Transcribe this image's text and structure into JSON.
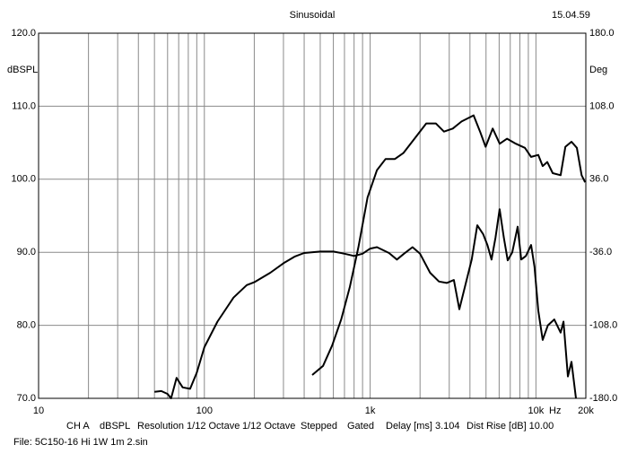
{
  "chart_data": {
    "type": "line",
    "title": "Sinusoidal",
    "timestamp": "15.04.59",
    "ylabel": "dBSPL",
    "y2label": "Deg",
    "xunit": "Hz",
    "xscale": "log",
    "grid": true,
    "xlim": [
      10,
      20000
    ],
    "xticks": [
      10,
      100,
      {
        "value": 1000,
        "label": "1k"
      },
      {
        "value": 10000,
        "label": "10k"
      },
      {
        "value": 20000,
        "label": "20k"
      }
    ],
    "xgrid": [
      20,
      30,
      40,
      50,
      60,
      70,
      80,
      90,
      200,
      300,
      400,
      500,
      600,
      700,
      800,
      900,
      2000,
      3000,
      4000,
      5000,
      6000,
      7000,
      8000,
      9000
    ],
    "ylim": [
      70,
      120
    ],
    "yticks": [
      {
        "value": 70,
        "label": "70.0"
      },
      {
        "value": 80,
        "label": "80.0"
      },
      {
        "value": 90,
        "label": "90.0"
      },
      {
        "value": 100,
        "label": "100.0"
      },
      {
        "value": 110,
        "label": "110.0"
      },
      {
        "value": 120,
        "label": "120.0"
      }
    ],
    "y2lim": [
      -180,
      180
    ],
    "y2ticks": [
      {
        "value": -180,
        "label": "-180.0"
      },
      {
        "value": -108,
        "label": "-108.0"
      },
      {
        "value": -36,
        "label": "-36.0"
      },
      {
        "value": 36,
        "label": "36.0"
      },
      {
        "value": 108,
        "label": "108.0"
      },
      {
        "value": 180,
        "label": "180.0"
      }
    ],
    "series": [
      {
        "color": "#000000",
        "axis": "y",
        "x": [
          50,
          55,
          60,
          63,
          68,
          74,
          82,
          90,
          100,
          120,
          150,
          180,
          200,
          250,
          300,
          350,
          400,
          500,
          600,
          700,
          800,
          900,
          1000,
          1100,
          1300,
          1450,
          1600,
          1800,
          2000,
          2300,
          2600,
          2900,
          3200,
          3450,
          3800,
          4100,
          4430,
          4800,
          5100,
          5400,
          5700,
          6040,
          6400,
          6760,
          7200,
          7760,
          8150,
          8700,
          9350,
          9800,
          10330,
          10990,
          11800,
          12900,
          14100,
          14660,
          15590,
          16380,
          17430
        ],
        "values": [
          70.9,
          71.0,
          70.6,
          70.0,
          72.8,
          71.5,
          71.3,
          73.5,
          77.0,
          80.5,
          83.8,
          85.5,
          85.9,
          87.2,
          88.5,
          89.4,
          89.9,
          90.1,
          90.1,
          89.8,
          89.5,
          89.8,
          90.5,
          90.7,
          89.9,
          89.0,
          89.8,
          90.7,
          89.8,
          87.2,
          86.0,
          85.8,
          86.2,
          82.2,
          86.0,
          89.0,
          93.7,
          92.5,
          91.0,
          89.0,
          92.0,
          95.9,
          92.0,
          88.9,
          90.0,
          93.5,
          89.0,
          89.5,
          91.0,
          88.0,
          82.0,
          78.0,
          80.0,
          80.8,
          79.0,
          80.5,
          73.0,
          75.0,
          70.0
        ]
      },
      {
        "color": "#000000",
        "axis": "y2",
        "x": [
          447,
          520,
          590,
          670,
          755,
          850,
          965,
          1100,
          1240,
          1410,
          1590,
          1850,
          2180,
          2490,
          2790,
          3150,
          3560,
          4210,
          4600,
          4970,
          5490,
          6050,
          6700,
          7570,
          8580,
          9350,
          10330,
          10990,
          11700,
          12630,
          14100,
          15060,
          16380,
          17660,
          18860,
          19800
        ],
        "values": [
          -157,
          -148,
          -128,
          -102,
          -70,
          -31,
          18,
          45,
          56,
          56,
          62,
          76,
          91,
          91,
          83,
          86,
          93,
          99,
          83,
          68,
          86,
          71,
          76,
          71,
          67,
          58,
          60,
          49,
          53,
          42,
          40,
          68,
          73,
          67,
          40,
          33
        ]
      }
    ],
    "info": [
      "CH A",
      "dBSPL",
      "Resolution 1/12 Octave",
      "1/12 Octave",
      "Stepped",
      "Gated",
      "Delay [ms] 3.104",
      "Dist Rise [dB] 10.00"
    ],
    "file": "File: 5C150-16 Hi 1W 1m 2.sin"
  }
}
